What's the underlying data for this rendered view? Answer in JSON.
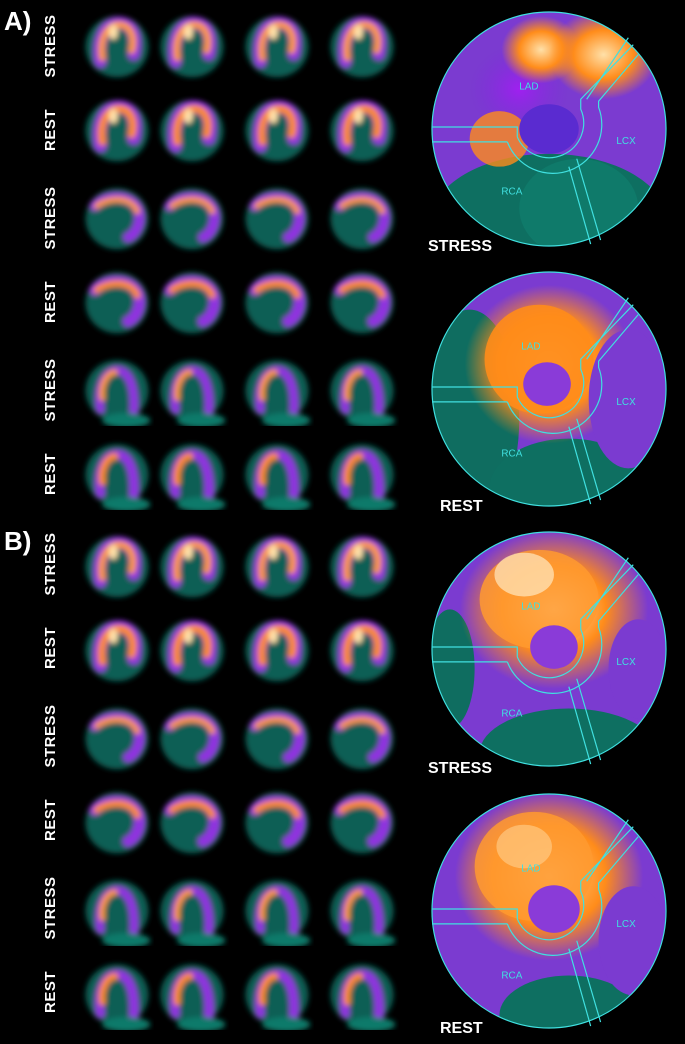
{
  "panels": [
    {
      "label": "A)",
      "rows": [
        "STRESS",
        "REST",
        "STRESS",
        "REST",
        "STRESS",
        "REST"
      ],
      "polar_maps": [
        {
          "label": "STRESS",
          "territories": [
            "LAD",
            "LCX",
            "RCA"
          ]
        },
        {
          "label": "REST",
          "territories": [
            "LAD",
            "LCX",
            "RCA"
          ]
        }
      ]
    },
    {
      "label": "B)",
      "rows": [
        "STRESS",
        "REST",
        "STRESS",
        "REST",
        "STRESS",
        "REST"
      ],
      "polar_maps": [
        {
          "label": "STRESS",
          "territories": [
            "LAD",
            "LCX",
            "RCA"
          ]
        },
        {
          "label": "REST",
          "territories": [
            "LAD",
            "LCX",
            "RCA"
          ]
        }
      ]
    }
  ],
  "colors": {
    "background": "#000000",
    "low_uptake": "#0d6e60",
    "mid_uptake": "#8a2be2",
    "high_uptake": "#ff8c1a",
    "peak_uptake": "#ffe0a0",
    "territory_lines": "#40e0e0"
  }
}
